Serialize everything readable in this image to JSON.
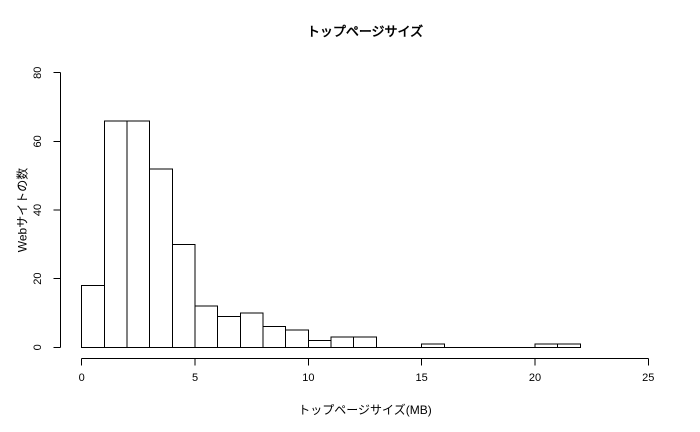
{
  "chart_data": {
    "type": "bar",
    "chart_kind": "histogram",
    "title": "トップページサイズ",
    "xlabel": "トップページサイズ(MB)",
    "ylabel": "Webサイトの数",
    "bin_start": 0,
    "bin_width": 1,
    "counts": [
      18,
      66,
      66,
      52,
      30,
      12,
      9,
      10,
      6,
      5,
      2,
      3,
      3,
      0,
      0,
      1,
      0,
      0,
      0,
      0,
      1,
      1
    ],
    "xticks": [
      0,
      5,
      10,
      15,
      20,
      25
    ],
    "yticks": [
      0,
      20,
      40,
      60,
      80
    ],
    "xlim": [
      0,
      25
    ],
    "ylim": [
      0,
      80
    ],
    "grid": false,
    "legend": null,
    "colors": {
      "bar_fill": "#ffffff",
      "bar_stroke": "#000000",
      "axis": "#000000",
      "text": "#000000",
      "background": "#ffffff"
    }
  }
}
